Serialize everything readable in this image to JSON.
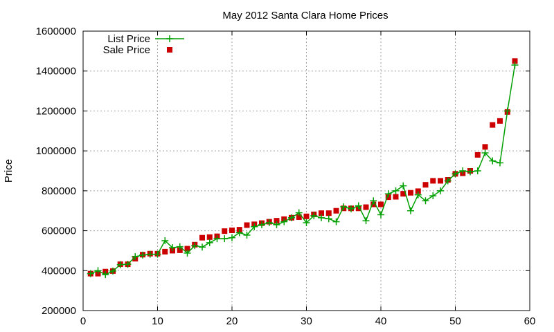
{
  "chart_data": {
    "type": "line",
    "title": "May 2012 Santa Clara Home Prices",
    "xlabel": "",
    "ylabel": "Price",
    "xlim": [
      0,
      60
    ],
    "ylim": [
      200000,
      1600000
    ],
    "x_ticks": [
      0,
      10,
      20,
      30,
      40,
      50,
      60
    ],
    "y_ticks": [
      200000,
      400000,
      600000,
      800000,
      1000000,
      1200000,
      1400000,
      1600000
    ],
    "grid": true,
    "legend_position": "top-left",
    "series": [
      {
        "name": "List Price",
        "style": "line-plus",
        "color": "#00a000",
        "x": [
          1,
          2,
          3,
          4,
          5,
          6,
          7,
          8,
          9,
          10,
          11,
          12,
          13,
          14,
          15,
          16,
          17,
          18,
          19,
          20,
          21,
          22,
          23,
          24,
          25,
          26,
          27,
          28,
          29,
          30,
          31,
          32,
          33,
          34,
          35,
          36,
          37,
          38,
          39,
          40,
          41,
          42,
          43,
          44,
          45,
          46,
          47,
          48,
          49,
          50,
          51,
          52,
          53,
          54,
          55,
          56,
          57,
          58
        ],
        "values": [
          385000,
          400000,
          380000,
          398000,
          430000,
          432000,
          470000,
          478000,
          482000,
          482000,
          550000,
          515000,
          520000,
          488000,
          525000,
          518000,
          540000,
          560000,
          560000,
          565000,
          590000,
          578000,
          620000,
          630000,
          640000,
          630000,
          645000,
          665000,
          690000,
          640000,
          675000,
          665000,
          660000,
          645000,
          720000,
          710000,
          725000,
          650000,
          750000,
          680000,
          785000,
          800000,
          825000,
          700000,
          780000,
          750000,
          775000,
          800000,
          850000,
          885000,
          900000,
          895000,
          900000,
          990000,
          950000,
          940000,
          1200000,
          1430000
        ]
      },
      {
        "name": "Sale Price",
        "style": "square",
        "color": "#cc0000",
        "x": [
          1,
          2,
          3,
          4,
          5,
          6,
          7,
          8,
          9,
          10,
          11,
          12,
          13,
          14,
          15,
          16,
          17,
          18,
          19,
          20,
          21,
          22,
          23,
          24,
          25,
          26,
          27,
          28,
          29,
          30,
          31,
          32,
          33,
          34,
          35,
          36,
          37,
          38,
          39,
          40,
          41,
          42,
          43,
          44,
          45,
          46,
          47,
          48,
          49,
          50,
          51,
          52,
          53,
          54,
          55,
          56,
          57,
          58
        ],
        "values": [
          385000,
          385000,
          395000,
          398000,
          432000,
          432000,
          460000,
          480000,
          485000,
          485000,
          495000,
          500000,
          502000,
          510000,
          530000,
          565000,
          568000,
          572000,
          598000,
          602000,
          605000,
          628000,
          632000,
          638000,
          645000,
          650000,
          658000,
          665000,
          668000,
          672000,
          682000,
          688000,
          688000,
          700000,
          712000,
          712000,
          712000,
          718000,
          732000,
          732000,
          768000,
          770000,
          785000,
          790000,
          798000,
          830000,
          850000,
          850000,
          855000,
          885000,
          888000,
          900000,
          980000,
          1020000,
          1130000,
          1150000,
          1195000,
          1450000
        ]
      }
    ]
  }
}
